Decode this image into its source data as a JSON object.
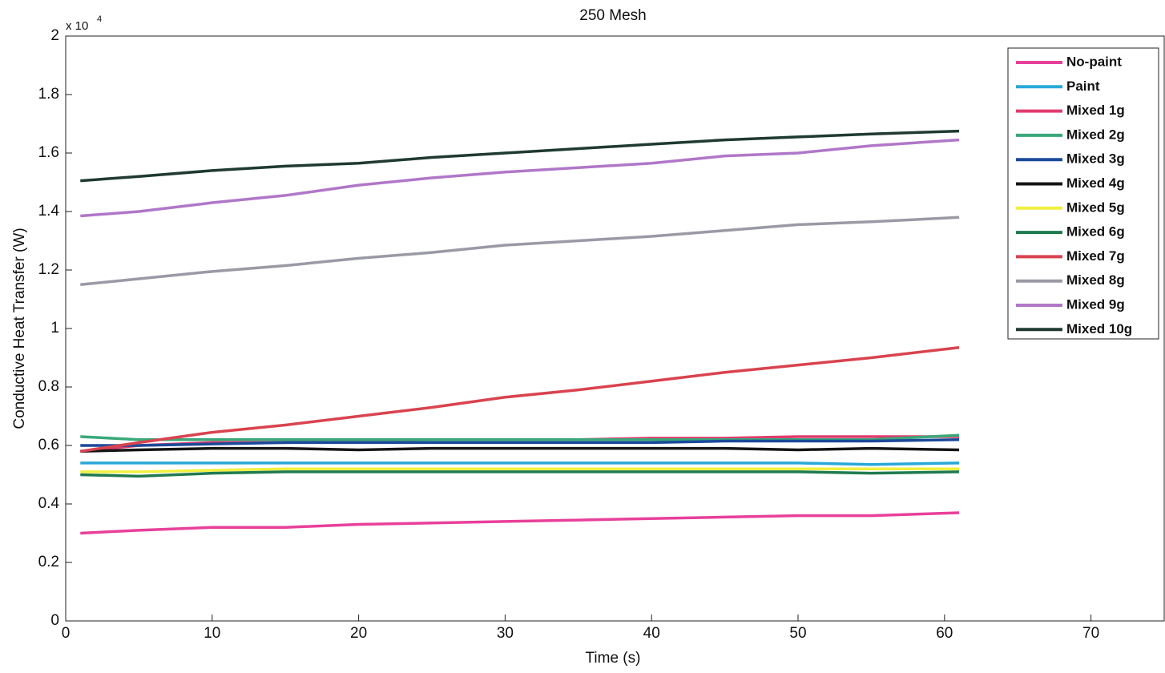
{
  "chart_data": {
    "type": "line",
    "title": "250 Mesh",
    "x_label": "Time (s)",
    "y_label": "Conductive Heat Transfer (W)",
    "y_scale_base": "x 10",
    "y_scale_exponent": "4",
    "xlim": [
      0,
      75
    ],
    "xticks": [
      0,
      10,
      20,
      30,
      40,
      50,
      60,
      70
    ],
    "ylim": [
      0,
      2
    ],
    "yticks": [
      0,
      0.2,
      0.4,
      0.6,
      0.8,
      1,
      1.2,
      1.4,
      1.6,
      1.8,
      2
    ],
    "legend_position": "upper right outside",
    "x": [
      1,
      5,
      10,
      15,
      20,
      25,
      30,
      35,
      40,
      45,
      50,
      55,
      61
    ],
    "series": [
      {
        "name": "No-paint",
        "color": "#e8409a",
        "values": [
          0.3,
          0.31,
          0.32,
          0.32,
          0.33,
          0.335,
          0.34,
          0.345,
          0.35,
          0.355,
          0.36,
          0.36,
          0.37
        ]
      },
      {
        "name": "Paint",
        "color": "#2aa8d8",
        "values": [
          0.54,
          0.54,
          0.54,
          0.54,
          0.54,
          0.54,
          0.54,
          0.54,
          0.54,
          0.54,
          0.54,
          0.535,
          0.54
        ]
      },
      {
        "name": "Mixed 1g",
        "color": "#e03c6e",
        "values": [
          0.58,
          0.6,
          0.61,
          0.61,
          0.615,
          0.62,
          0.62,
          0.62,
          0.625,
          0.625,
          0.63,
          0.63,
          0.63
        ]
      },
      {
        "name": "Mixed 2g",
        "color": "#3aa87a",
        "values": [
          0.63,
          0.62,
          0.62,
          0.62,
          0.62,
          0.62,
          0.62,
          0.62,
          0.62,
          0.62,
          0.62,
          0.62,
          0.635
        ]
      },
      {
        "name": "Mixed 3g",
        "color": "#1a4a9a",
        "values": [
          0.6,
          0.6,
          0.605,
          0.61,
          0.61,
          0.61,
          0.61,
          0.61,
          0.61,
          0.615,
          0.615,
          0.615,
          0.62
        ]
      },
      {
        "name": "Mixed 4g",
        "color": "#151515",
        "values": [
          0.58,
          0.585,
          0.59,
          0.59,
          0.585,
          0.59,
          0.59,
          0.59,
          0.59,
          0.59,
          0.585,
          0.59,
          0.585
        ]
      },
      {
        "name": "Mixed 5g",
        "color": "#f0f040",
        "values": [
          0.51,
          0.51,
          0.515,
          0.52,
          0.52,
          0.52,
          0.52,
          0.52,
          0.52,
          0.52,
          0.52,
          0.52,
          0.52
        ]
      },
      {
        "name": "Mixed 6g",
        "color": "#1f7a50",
        "values": [
          0.5,
          0.495,
          0.505,
          0.51,
          0.51,
          0.51,
          0.51,
          0.51,
          0.51,
          0.51,
          0.51,
          0.505,
          0.51
        ]
      },
      {
        "name": "Mixed 7g",
        "color": "#d9434f",
        "values": [
          0.58,
          0.61,
          0.645,
          0.67,
          0.7,
          0.73,
          0.765,
          0.79,
          0.82,
          0.85,
          0.875,
          0.9,
          0.935
        ]
      },
      {
        "name": "Mixed 8g",
        "color": "#999aa5",
        "values": [
          1.15,
          1.17,
          1.195,
          1.215,
          1.24,
          1.26,
          1.285,
          1.3,
          1.315,
          1.335,
          1.355,
          1.365,
          1.38
        ]
      },
      {
        "name": "Mixed 9g",
        "color": "#b077c8",
        "values": [
          1.385,
          1.4,
          1.43,
          1.455,
          1.49,
          1.515,
          1.535,
          1.55,
          1.565,
          1.59,
          1.6,
          1.625,
          1.645
        ]
      },
      {
        "name": "Mixed 10g",
        "color": "#1f3a32",
        "values": [
          1.505,
          1.52,
          1.54,
          1.555,
          1.565,
          1.585,
          1.6,
          1.615,
          1.63,
          1.645,
          1.655,
          1.665,
          1.675
        ]
      }
    ]
  }
}
